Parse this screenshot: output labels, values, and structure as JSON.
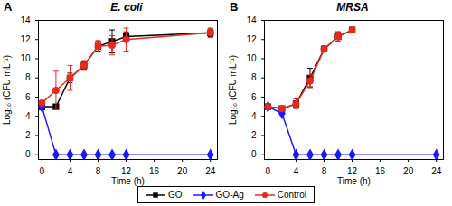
{
  "chart_data": [
    {
      "type": "line",
      "panel": "A",
      "title": "E. coli",
      "x_label": "Time (h)",
      "y_label": "Log₁₀ (CFU mL⁻¹)",
      "xlim": [
        -0.5,
        25
      ],
      "xticks": [
        0,
        4,
        8,
        12,
        16,
        20,
        24
      ],
      "ylim": [
        -0.5,
        14
      ],
      "yticks": [
        0,
        2,
        4,
        6,
        8,
        10,
        12,
        14
      ],
      "grid": false,
      "legend": "bottom",
      "series": [
        {
          "name": "GO",
          "color": "#000000",
          "marker": "square",
          "x": [
            0,
            2,
            4,
            6,
            8,
            10,
            12,
            24
          ],
          "values": [
            5.0,
            5.0,
            8.0,
            9.3,
            11.3,
            11.8,
            12.3,
            12.7
          ],
          "errors": [
            0.3,
            0.2,
            0.5,
            0.4,
            0.5,
            1.2,
            0.5,
            0.4
          ]
        },
        {
          "name": "GO-Ag",
          "color": "#1a1aff",
          "marker": "diamond",
          "x": [
            0,
            2,
            4,
            6,
            8,
            10,
            12,
            24
          ],
          "values": [
            5.0,
            0,
            0,
            0,
            0,
            0,
            0,
            0
          ],
          "errors": [
            0,
            0,
            0,
            0,
            0,
            0,
            0,
            0
          ]
        },
        {
          "name": "Control",
          "color": "#e8291c",
          "marker": "circle",
          "x": [
            0,
            2,
            4,
            6,
            8,
            10,
            12,
            24
          ],
          "values": [
            5.4,
            6.7,
            8.0,
            9.3,
            11.3,
            11.4,
            12.0,
            12.7
          ],
          "errors": [
            0.5,
            2.0,
            1.3,
            0.5,
            0.6,
            1.0,
            1.2,
            0.5
          ]
        }
      ]
    },
    {
      "type": "line",
      "panel": "B",
      "title": "MRSA",
      "x_label": "Time (h)",
      "y_label": "Log₁₀ (CFU mL⁻¹)",
      "xlim": [
        -0.5,
        25
      ],
      "xticks": [
        0,
        4,
        8,
        12,
        16,
        20,
        24
      ],
      "ylim": [
        -0.5,
        14
      ],
      "yticks": [
        0,
        2,
        4,
        6,
        8,
        10,
        12,
        14
      ],
      "grid": false,
      "legend": "bottom",
      "series": [
        {
          "name": "GO",
          "color": "#000000",
          "marker": "square",
          "x": [
            0,
            2,
            4,
            6,
            8,
            10,
            12
          ],
          "values": [
            5.0,
            4.8,
            5.3,
            8.0,
            11.0,
            12.3,
            13.0
          ],
          "errors": [
            0.2,
            0.2,
            0.3,
            1.0,
            0.3,
            0.5,
            0.2
          ]
        },
        {
          "name": "GO-Ag",
          "color": "#1a1aff",
          "marker": "diamond",
          "x": [
            0,
            2,
            4,
            6,
            8,
            10,
            12,
            24
          ],
          "values": [
            5.0,
            4.3,
            0,
            0,
            0,
            0,
            0,
            0
          ],
          "errors": [
            0,
            0,
            0,
            0,
            0,
            0,
            0,
            0
          ]
        },
        {
          "name": "Control",
          "color": "#e8291c",
          "marker": "circle",
          "x": [
            0,
            2,
            4,
            6,
            8,
            10,
            12
          ],
          "values": [
            5.0,
            4.8,
            5.3,
            7.7,
            11.0,
            12.3,
            13.0
          ],
          "errors": [
            0.2,
            0.2,
            0.5,
            0.6,
            0.3,
            0.5,
            0.2
          ]
        }
      ]
    }
  ]
}
